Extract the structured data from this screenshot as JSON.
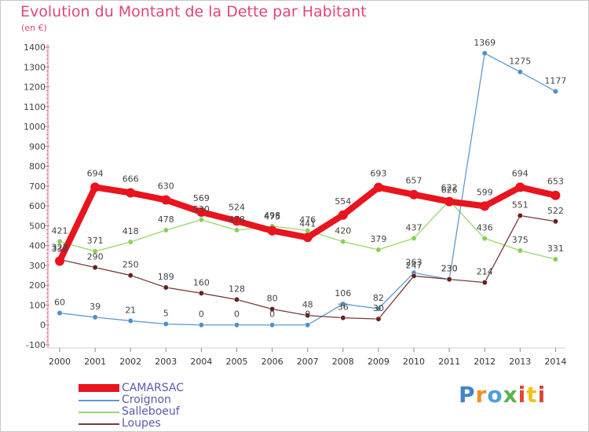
{
  "header": {
    "title": "Evolution du Montant de la Dette par Habitant",
    "subtitle": "(en €)"
  },
  "logo": {
    "text": "Proxiti",
    "colors": [
      "#3f86c5",
      "#f2901e",
      "#4da0d8",
      "#5ab54b",
      "#e8412e",
      "#f2c21e",
      "#d7483c"
    ]
  },
  "chart_data": {
    "type": "line",
    "title": "Evolution du Montant de la Dette par Habitant",
    "subtitle": "(en €)",
    "xlabel": "",
    "ylabel": "",
    "x": [
      "2000",
      "2001",
      "2002",
      "2003",
      "2004",
      "2005",
      "2006",
      "2007",
      "2008",
      "2009",
      "2010",
      "2011",
      "2012",
      "2013",
      "2014"
    ],
    "ylim": [
      -100,
      1400
    ],
    "yticks": [
      -100,
      0,
      100,
      200,
      300,
      400,
      500,
      600,
      700,
      800,
      900,
      1000,
      1100,
      1200,
      1300,
      1400
    ],
    "grid": false,
    "legend_position": "bottom-left",
    "series": [
      {
        "name": "CAMARSAC",
        "color": "#e8141e",
        "marker": "#e8141e",
        "width": 8,
        "values": [
          322,
          694,
          666,
          630,
          569,
          524,
          475,
          441,
          554,
          693,
          657,
          622,
          599,
          694,
          653
        ],
        "labels": [
          "322",
          "694",
          "666",
          "630",
          "569",
          "524",
          "475",
          "441",
          "554",
          "693",
          "657",
          "622",
          "599",
          "694",
          "653"
        ]
      },
      {
        "name": "Croignon",
        "color": "#5c9bcf",
        "marker": "#4f8fcb",
        "width": 1.3,
        "values": [
          60,
          39,
          21,
          5,
          0,
          0,
          0,
          0,
          106,
          82,
          263,
          230,
          1369,
          1275,
          1177
        ],
        "labels": [
          "60",
          "39",
          "21",
          "5",
          "0",
          "0",
          "0",
          "0",
          "106",
          "82",
          "263",
          "230",
          "1369",
          "1275",
          "1177"
        ]
      },
      {
        "name": "Salleboeuf",
        "color": "#98d66a",
        "marker": "#8ccf54",
        "width": 1.3,
        "values": [
          421,
          371,
          418,
          478,
          530,
          478,
          498,
          476,
          420,
          379,
          437,
          626,
          436,
          375,
          331
        ],
        "labels": [
          "421",
          "371",
          "418",
          "478",
          "530",
          "478",
          "498",
          "476",
          "420",
          "379",
          "437",
          "626",
          "436",
          "375",
          "331"
        ]
      },
      {
        "name": "Loupes",
        "color": "#7a3a3a",
        "marker": "#6a2020",
        "width": 1.3,
        "values": [
          330,
          290,
          250,
          189,
          160,
          128,
          80,
          48,
          36,
          30,
          247,
          230,
          214,
          551,
          522
        ],
        "labels": [
          "330",
          "290",
          "250",
          "189",
          "160",
          "128",
          "80",
          "48",
          "36",
          "30",
          "247",
          "230",
          "214",
          "551",
          "522"
        ]
      }
    ]
  }
}
